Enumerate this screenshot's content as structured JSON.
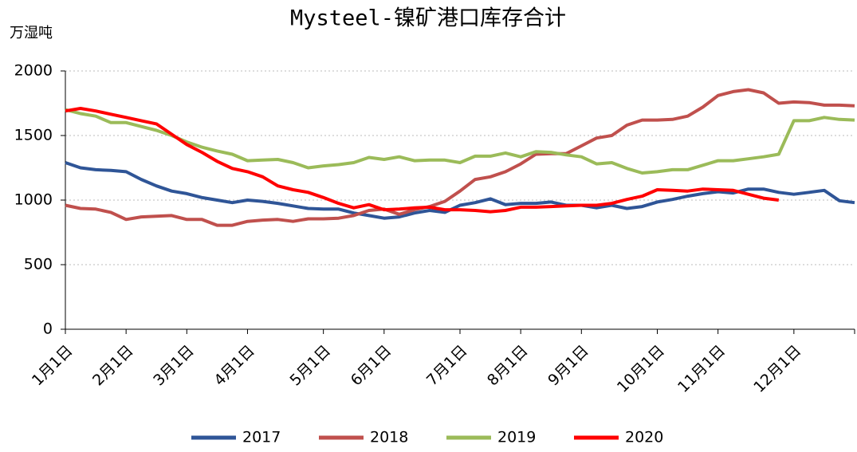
{
  "chart_data": {
    "type": "line",
    "title": "Mysteel-镍矿港口库存合计",
    "y_unit": "万湿吨",
    "categories": [
      "1月1日",
      null,
      null,
      null,
      "2月1日",
      null,
      null,
      null,
      "3月1日",
      null,
      null,
      null,
      "4月1日",
      null,
      null,
      null,
      null,
      "5月1日",
      null,
      null,
      null,
      "6月1日",
      null,
      null,
      null,
      null,
      "7月1日",
      null,
      null,
      null,
      "8月1日",
      null,
      null,
      null,
      "9月1日",
      null,
      null,
      null,
      null,
      "10月1日",
      null,
      null,
      null,
      "11月1日",
      null,
      null,
      null,
      null,
      "12月1日",
      null,
      null,
      null,
      null
    ],
    "series": [
      {
        "name": "2017",
        "color": "#2f5597",
        "values": [
          1290,
          1250,
          1235,
          1230,
          1220,
          1160,
          1110,
          1070,
          1050,
          1020,
          1000,
          980,
          1000,
          990,
          975,
          955,
          935,
          930,
          930,
          900,
          880,
          860,
          870,
          900,
          920,
          905,
          960,
          980,
          1010,
          965,
          975,
          975,
          985,
          960,
          960,
          940,
          960,
          935,
          950,
          985,
          1005,
          1030,
          1050,
          1065,
          1055,
          1085,
          1085,
          1060,
          1045,
          1060,
          1075,
          995,
          980
        ]
      },
      {
        "name": "2018",
        "color": "#c0504d",
        "values": [
          960,
          935,
          930,
          905,
          850,
          870,
          875,
          880,
          850,
          850,
          805,
          805,
          835,
          845,
          850,
          835,
          855,
          855,
          860,
          880,
          920,
          930,
          890,
          925,
          950,
          990,
          1070,
          1160,
          1180,
          1220,
          1280,
          1355,
          1360,
          1360,
          1420,
          1480,
          1500,
          1580,
          1620,
          1620,
          1625,
          1650,
          1720,
          1810,
          1840,
          1855,
          1830,
          1750,
          1760,
          1755,
          1735,
          1735,
          1730
        ]
      },
      {
        "name": "2019",
        "color": "#9bbb59",
        "values": [
          1700,
          1670,
          1650,
          1600,
          1600,
          1570,
          1540,
          1500,
          1450,
          1410,
          1380,
          1355,
          1305,
          1310,
          1315,
          1290,
          1250,
          1265,
          1275,
          1290,
          1330,
          1315,
          1335,
          1305,
          1310,
          1310,
          1290,
          1340,
          1340,
          1365,
          1335,
          1375,
          1370,
          1350,
          1335,
          1280,
          1290,
          1245,
          1210,
          1220,
          1235,
          1235,
          1270,
          1305,
          1305,
          1320,
          1335,
          1355,
          1615,
          1615,
          1640,
          1625,
          1620
        ]
      },
      {
        "name": "2020",
        "color": "#ff0000",
        "values": [
          1690,
          1710,
          1690,
          1665,
          1640,
          1615,
          1590,
          1510,
          1430,
          1370,
          1300,
          1245,
          1220,
          1180,
          1110,
          1080,
          1060,
          1020,
          975,
          940,
          965,
          925,
          930,
          940,
          945,
          925,
          925,
          920,
          910,
          920,
          945,
          945,
          950,
          955,
          960,
          960,
          975,
          1005,
          1030,
          1080,
          1075,
          1070,
          1085,
          1080,
          1075,
          1045,
          1015,
          1000,
          null,
          null,
          null,
          null,
          null
        ]
      }
    ],
    "ylim": [
      0,
      2000
    ],
    "yticks": [
      0,
      500,
      1000,
      1500,
      2000
    ],
    "grid": true,
    "legend": "bottom"
  }
}
